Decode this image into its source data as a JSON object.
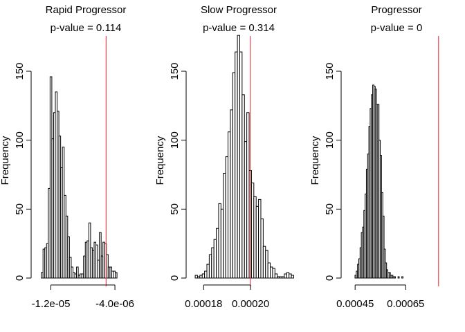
{
  "chart_data": [
    {
      "type": "bar",
      "title": "Rapid Progressor",
      "subtitle": "p-value = 0.114",
      "xlabel": "",
      "ylabel": "Frequency",
      "xlim": [
        -1.36e-05,
        -1.5e-06
      ],
      "ylim": [
        0,
        150
      ],
      "x_ticks": [
        -1.2e-05,
        -4e-06
      ],
      "x_tick_labels": [
        "-1.2e-05",
        "-4.0e-06"
      ],
      "y_ticks": [
        0,
        50,
        100,
        150
      ],
      "y_tick_labels": [
        "0",
        "50",
        "100",
        "150"
      ],
      "reference_line": {
        "x": -5.1e-06,
        "color": "#e8444f"
      },
      "bin_start": -1.32e-05,
      "bin_width": 2.2e-07,
      "values": [
        4,
        21,
        22,
        25,
        65,
        146,
        101,
        120,
        135,
        121,
        103,
        80,
        95,
        60,
        45,
        30,
        15,
        8,
        4,
        3,
        8,
        2,
        3,
        3,
        16,
        26,
        27,
        40,
        22,
        20,
        26,
        24,
        13,
        33,
        16,
        26,
        25,
        17,
        8,
        8,
        5,
        5,
        4
      ],
      "grid": false,
      "legend": "none"
    },
    {
      "type": "bar",
      "title": "Slow Progressor",
      "subtitle": "p-value = 0.314",
      "xlabel": "",
      "ylabel": "Frequency",
      "xlim": [
        0.0001755,
        0.0002165
      ],
      "ylim": [
        0,
        150
      ],
      "x_ticks": [
        0.00018,
        0.0002
      ],
      "x_tick_labels": [
        "0.00018",
        "0.00020"
      ],
      "y_ticks": [
        0,
        50,
        100,
        150
      ],
      "y_tick_labels": [
        "0",
        "50",
        "100",
        "150"
      ],
      "reference_line": {
        "x": 0.0001999,
        "color": "#e8444f"
      },
      "bin_start": 0.0001764,
      "bin_width": 1e-06,
      "values": [
        2,
        1,
        2,
        3,
        5,
        10,
        17,
        22,
        28,
        36,
        54,
        50,
        76,
        88,
        106,
        122,
        149,
        164,
        176,
        164,
        133,
        99,
        120,
        78,
        69,
        59,
        52,
        57,
        43,
        23,
        20,
        11,
        8,
        7,
        3,
        1,
        1,
        1,
        3,
        4,
        3,
        2
      ],
      "grid": false,
      "legend": "none"
    },
    {
      "type": "bar",
      "title": "Progressor",
      "subtitle": "p-value = 0",
      "xlabel": "",
      "ylabel": "Frequency",
      "xlim": [
        0.0004221,
        0.0008025
      ],
      "ylim": [
        0,
        150
      ],
      "x_ticks": [
        0.00045,
        0.00065
      ],
      "x_tick_labels": [
        "0.00045",
        "0.00065"
      ],
      "y_ticks": [
        0,
        50,
        100,
        150
      ],
      "y_tick_labels": [
        "0",
        "50",
        "100",
        "150"
      ],
      "reference_line": {
        "x": 0.00078,
        "color": "#e8444f"
      },
      "bin_start": 0.0004495,
      "bin_width": 5e-06,
      "values": [
        2,
        5,
        10,
        14,
        22,
        33,
        37,
        49,
        61,
        79,
        90,
        110,
        123,
        133,
        140,
        139,
        137,
        126,
        126,
        100,
        89,
        62,
        45,
        21,
        11,
        6,
        4,
        4,
        2,
        2,
        1,
        1,
        0,
        0,
        1,
        0,
        0,
        1
      ],
      "grid": false,
      "legend": "none"
    }
  ]
}
